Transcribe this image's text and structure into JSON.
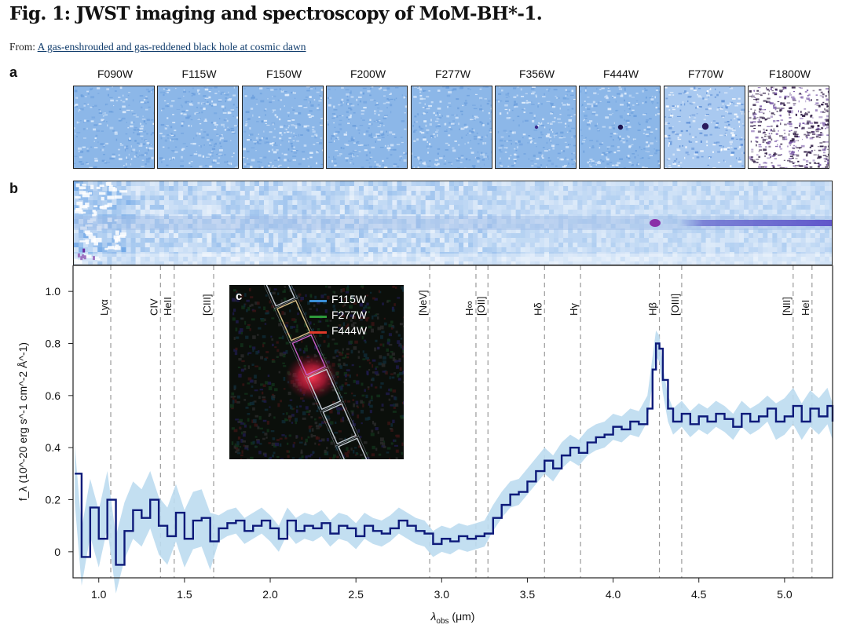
{
  "figure": {
    "title": "Fig. 1: JWST imaging and spectroscopy of MoM-BH*-1.",
    "from_prefix": "From:",
    "from_link": "A gas-enshrouded and gas-reddened black hole at cosmic dawn"
  },
  "panel_a": {
    "label": "a",
    "filters": [
      "F090W",
      "F115W",
      "F150W",
      "F200W",
      "F277W",
      "F356W",
      "F444W",
      "F770W",
      "F1800W"
    ]
  },
  "panel_b": {
    "label": "b"
  },
  "panel_c": {
    "label": "c",
    "legend": [
      {
        "name": "F115W",
        "color": "#3b8fd6"
      },
      {
        "name": "F277W",
        "color": "#2e9b3a"
      },
      {
        "name": "F444W",
        "color": "#e03a2a"
      }
    ]
  },
  "chart_data": {
    "type": "line",
    "xlabel_main": "λ",
    "xlabel_sub": "obs",
    "xlabel_unit": " (μm)",
    "ylabel": "f_λ (10^-20 erg s^-1 cm^-2 Å^-1)",
    "xlim": [
      0.85,
      5.28
    ],
    "ylim": [
      -0.1,
      1.1
    ],
    "xticks": [
      1.0,
      1.5,
      2.0,
      2.5,
      3.0,
      3.5,
      4.0,
      4.5,
      5.0
    ],
    "xtick_labels": [
      "1.0",
      "1.5",
      "2.0",
      "2.5",
      "3.0",
      "3.5",
      "4.0",
      "4.5",
      "5.0"
    ],
    "yticks": [
      0,
      0.2,
      0.4,
      0.6,
      0.8,
      1.0
    ],
    "ytick_labels": [
      "0",
      "0.2",
      "0.4",
      "0.6",
      "0.8",
      "1.0"
    ],
    "lines": [
      {
        "name": "Lyα",
        "x": 1.07
      },
      {
        "name": "CIV",
        "x": 1.36
      },
      {
        "name": "HeII",
        "x": 1.44
      },
      {
        "name": "[CIII]",
        "x": 1.67
      },
      {
        "name": "[NeV]",
        "x": 2.93
      },
      {
        "name": "H∞",
        "x": 3.2
      },
      {
        "name": "[OII]",
        "x": 3.27
      },
      {
        "name": "Hδ",
        "x": 3.6
      },
      {
        "name": "Hγ",
        "x": 3.81
      },
      {
        "name": "Hβ",
        "x": 4.27
      },
      {
        "name": "[OIII]",
        "x": 4.4
      },
      {
        "name": "[NII]",
        "x": 5.05
      },
      {
        "name": "HeI",
        "x": 5.16
      }
    ],
    "series": [
      {
        "color": "#0d1a7a",
        "error_color": "#bcdcf0",
        "points": [
          [
            0.86,
            0.3
          ],
          [
            0.9,
            -0.02
          ],
          [
            0.95,
            0.17
          ],
          [
            1.0,
            0.05
          ],
          [
            1.05,
            0.2
          ],
          [
            1.1,
            -0.05
          ],
          [
            1.15,
            0.08
          ],
          [
            1.2,
            0.16
          ],
          [
            1.25,
            0.13
          ],
          [
            1.3,
            0.2
          ],
          [
            1.35,
            0.1
          ],
          [
            1.4,
            0.06
          ],
          [
            1.45,
            0.15
          ],
          [
            1.5,
            0.05
          ],
          [
            1.55,
            0.12
          ],
          [
            1.6,
            0.13
          ],
          [
            1.65,
            0.04
          ],
          [
            1.7,
            0.09
          ],
          [
            1.75,
            0.11
          ],
          [
            1.8,
            0.12
          ],
          [
            1.85,
            0.08
          ],
          [
            1.9,
            0.1
          ],
          [
            1.95,
            0.12
          ],
          [
            2.0,
            0.09
          ],
          [
            2.05,
            0.05
          ],
          [
            2.1,
            0.12
          ],
          [
            2.15,
            0.08
          ],
          [
            2.2,
            0.1
          ],
          [
            2.25,
            0.09
          ],
          [
            2.3,
            0.11
          ],
          [
            2.35,
            0.07
          ],
          [
            2.4,
            0.1
          ],
          [
            2.45,
            0.09
          ],
          [
            2.5,
            0.06
          ],
          [
            2.55,
            0.1
          ],
          [
            2.6,
            0.08
          ],
          [
            2.65,
            0.07
          ],
          [
            2.7,
            0.09
          ],
          [
            2.75,
            0.12
          ],
          [
            2.8,
            0.1
          ],
          [
            2.85,
            0.08
          ],
          [
            2.9,
            0.07
          ],
          [
            2.95,
            0.03
          ],
          [
            3.0,
            0.05
          ],
          [
            3.05,
            0.04
          ],
          [
            3.1,
            0.06
          ],
          [
            3.15,
            0.05
          ],
          [
            3.2,
            0.06
          ],
          [
            3.25,
            0.07
          ],
          [
            3.3,
            0.13
          ],
          [
            3.35,
            0.18
          ],
          [
            3.4,
            0.22
          ],
          [
            3.45,
            0.23
          ],
          [
            3.5,
            0.27
          ],
          [
            3.55,
            0.31
          ],
          [
            3.6,
            0.35
          ],
          [
            3.65,
            0.32
          ],
          [
            3.7,
            0.37
          ],
          [
            3.75,
            0.4
          ],
          [
            3.8,
            0.38
          ],
          [
            3.85,
            0.42
          ],
          [
            3.9,
            0.44
          ],
          [
            3.95,
            0.45
          ],
          [
            4.0,
            0.48
          ],
          [
            4.05,
            0.47
          ],
          [
            4.1,
            0.5
          ],
          [
            4.15,
            0.49
          ],
          [
            4.2,
            0.55
          ],
          [
            4.23,
            0.7
          ],
          [
            4.25,
            0.8
          ],
          [
            4.27,
            0.78
          ],
          [
            4.29,
            0.66
          ],
          [
            4.32,
            0.55
          ],
          [
            4.35,
            0.5
          ],
          [
            4.4,
            0.53
          ],
          [
            4.45,
            0.49
          ],
          [
            4.5,
            0.52
          ],
          [
            4.55,
            0.5
          ],
          [
            4.6,
            0.53
          ],
          [
            4.65,
            0.51
          ],
          [
            4.7,
            0.48
          ],
          [
            4.75,
            0.53
          ],
          [
            4.8,
            0.5
          ],
          [
            4.85,
            0.52
          ],
          [
            4.9,
            0.55
          ],
          [
            4.95,
            0.5
          ],
          [
            5.0,
            0.52
          ],
          [
            5.05,
            0.56
          ],
          [
            5.1,
            0.5
          ],
          [
            5.15,
            0.55
          ],
          [
            5.2,
            0.52
          ],
          [
            5.25,
            0.56
          ],
          [
            5.28,
            0.5
          ]
        ]
      }
    ]
  }
}
